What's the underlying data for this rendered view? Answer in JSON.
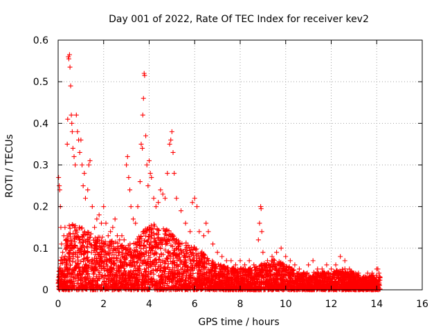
{
  "chart_data": {
    "type": "scatter",
    "title": "Day 001 of 2022, Rate Of TEC Index for receiver kev2",
    "xlabel": "GPS time / hours",
    "ylabel": "ROTI / TECUs",
    "xlim": [
      0,
      16
    ],
    "ylim": [
      0,
      0.6
    ],
    "xticks": [
      0,
      2,
      4,
      6,
      8,
      10,
      12,
      14,
      16
    ],
    "yticks": [
      0,
      0.1,
      0.2,
      0.3,
      0.4,
      0.5,
      0.6
    ],
    "grid": true,
    "marker": "+",
    "color": "#ff0000",
    "series": [
      {
        "name": "ROTI",
        "points": [
          [
            0.02,
            0.27
          ],
          [
            0.05,
            0.25
          ],
          [
            0.07,
            0.24
          ],
          [
            0.1,
            0.2
          ],
          [
            0.12,
            0.15
          ],
          [
            0.15,
            0.11
          ],
          [
            0.2,
            0.09
          ],
          [
            0.25,
            0.13
          ],
          [
            0.3,
            0.15
          ],
          [
            0.35,
            0.12
          ],
          [
            0.4,
            0.35
          ],
          [
            0.42,
            0.41
          ],
          [
            0.45,
            0.56
          ],
          [
            0.47,
            0.555
          ],
          [
            0.5,
            0.565
          ],
          [
            0.52,
            0.535
          ],
          [
            0.55,
            0.49
          ],
          [
            0.58,
            0.42
          ],
          [
            0.6,
            0.4
          ],
          [
            0.62,
            0.38
          ],
          [
            0.65,
            0.34
          ],
          [
            0.7,
            0.32
          ],
          [
            0.75,
            0.3
          ],
          [
            0.8,
            0.42
          ],
          [
            0.85,
            0.38
          ],
          [
            0.9,
            0.36
          ],
          [
            0.95,
            0.33
          ],
          [
            1.0,
            0.36
          ],
          [
            1.05,
            0.3
          ],
          [
            1.1,
            0.25
          ],
          [
            1.15,
            0.28
          ],
          [
            1.2,
            0.22
          ],
          [
            1.3,
            0.24
          ],
          [
            1.35,
            0.3
          ],
          [
            1.4,
            0.31
          ],
          [
            1.5,
            0.2
          ],
          [
            1.6,
            0.15
          ],
          [
            1.7,
            0.17
          ],
          [
            1.8,
            0.18
          ],
          [
            1.9,
            0.16
          ],
          [
            2.0,
            0.2
          ],
          [
            2.1,
            0.16
          ],
          [
            2.2,
            0.13
          ],
          [
            2.3,
            0.14
          ],
          [
            2.4,
            0.15
          ],
          [
            2.5,
            0.17
          ],
          [
            2.6,
            0.13
          ],
          [
            2.7,
            0.12
          ],
          [
            2.8,
            0.13
          ],
          [
            2.9,
            0.12
          ],
          [
            3.0,
            0.3
          ],
          [
            3.05,
            0.32
          ],
          [
            3.1,
            0.27
          ],
          [
            3.15,
            0.24
          ],
          [
            3.2,
            0.2
          ],
          [
            3.3,
            0.17
          ],
          [
            3.4,
            0.16
          ],
          [
            3.5,
            0.2
          ],
          [
            3.6,
            0.26
          ],
          [
            3.65,
            0.35
          ],
          [
            3.7,
            0.34
          ],
          [
            3.72,
            0.42
          ],
          [
            3.75,
            0.46
          ],
          [
            3.78,
            0.52
          ],
          [
            3.8,
            0.515
          ],
          [
            3.85,
            0.37
          ],
          [
            3.9,
            0.3
          ],
          [
            3.95,
            0.25
          ],
          [
            4.0,
            0.31
          ],
          [
            4.05,
            0.28
          ],
          [
            4.1,
            0.27
          ],
          [
            4.2,
            0.22
          ],
          [
            4.3,
            0.2
          ],
          [
            4.4,
            0.21
          ],
          [
            4.5,
            0.24
          ],
          [
            4.6,
            0.23
          ],
          [
            4.7,
            0.22
          ],
          [
            4.8,
            0.28
          ],
          [
            4.9,
            0.35
          ],
          [
            4.95,
            0.36
          ],
          [
            5.0,
            0.38
          ],
          [
            5.05,
            0.33
          ],
          [
            5.1,
            0.28
          ],
          [
            5.2,
            0.22
          ],
          [
            5.4,
            0.19
          ],
          [
            5.6,
            0.16
          ],
          [
            5.8,
            0.14
          ],
          [
            5.9,
            0.21
          ],
          [
            6.0,
            0.22
          ],
          [
            6.1,
            0.2
          ],
          [
            6.2,
            0.14
          ],
          [
            6.4,
            0.13
          ],
          [
            6.5,
            0.16
          ],
          [
            6.6,
            0.14
          ],
          [
            6.8,
            0.11
          ],
          [
            7.0,
            0.09
          ],
          [
            7.2,
            0.08
          ],
          [
            7.4,
            0.07
          ],
          [
            7.6,
            0.07
          ],
          [
            7.8,
            0.06
          ],
          [
            8.0,
            0.07
          ],
          [
            8.2,
            0.06
          ],
          [
            8.4,
            0.07
          ],
          [
            8.6,
            0.06
          ],
          [
            8.8,
            0.12
          ],
          [
            8.85,
            0.16
          ],
          [
            8.9,
            0.2
          ],
          [
            8.92,
            0.195
          ],
          [
            8.95,
            0.14
          ],
          [
            9.0,
            0.09
          ],
          [
            9.2,
            0.07
          ],
          [
            9.4,
            0.08
          ],
          [
            9.6,
            0.09
          ],
          [
            9.8,
            0.1
          ],
          [
            10.0,
            0.08
          ],
          [
            10.2,
            0.07
          ],
          [
            10.4,
            0.06
          ],
          [
            10.6,
            0.05
          ],
          [
            10.8,
            0.04
          ],
          [
            11.0,
            0.06
          ],
          [
            11.2,
            0.07
          ],
          [
            11.4,
            0.05
          ],
          [
            11.6,
            0.05
          ],
          [
            11.8,
            0.06
          ],
          [
            12.0,
            0.05
          ],
          [
            12.2,
            0.06
          ],
          [
            12.4,
            0.08
          ],
          [
            12.6,
            0.07
          ],
          [
            12.8,
            0.05
          ],
          [
            13.0,
            0.04
          ],
          [
            13.2,
            0.04
          ],
          [
            13.4,
            0.03
          ],
          [
            13.6,
            0.04
          ],
          [
            13.8,
            0.04
          ],
          [
            14.0,
            0.05
          ],
          [
            14.05,
            0.05
          ],
          [
            14.1,
            0.04
          ],
          [
            14.15,
            0.03
          ]
        ],
        "density_envelope": [
          [
            0.0,
            0.05
          ],
          [
            0.5,
            0.15
          ],
          [
            1.0,
            0.15
          ],
          [
            1.5,
            0.13
          ],
          [
            2.0,
            0.12
          ],
          [
            2.5,
            0.11
          ],
          [
            3.0,
            0.1
          ],
          [
            3.5,
            0.12
          ],
          [
            4.0,
            0.15
          ],
          [
            4.5,
            0.15
          ],
          [
            5.0,
            0.13
          ],
          [
            5.5,
            0.11
          ],
          [
            6.0,
            0.1
          ],
          [
            6.5,
            0.08
          ],
          [
            7.0,
            0.06
          ],
          [
            7.5,
            0.05
          ],
          [
            8.0,
            0.05
          ],
          [
            8.5,
            0.05
          ],
          [
            9.0,
            0.06
          ],
          [
            9.5,
            0.07
          ],
          [
            10.0,
            0.06
          ],
          [
            10.5,
            0.04
          ],
          [
            11.0,
            0.04
          ],
          [
            11.5,
            0.04
          ],
          [
            12.0,
            0.04
          ],
          [
            12.5,
            0.05
          ],
          [
            13.0,
            0.04
          ],
          [
            13.5,
            0.03
          ],
          [
            14.0,
            0.035
          ],
          [
            14.15,
            0.03
          ]
        ]
      }
    ]
  }
}
